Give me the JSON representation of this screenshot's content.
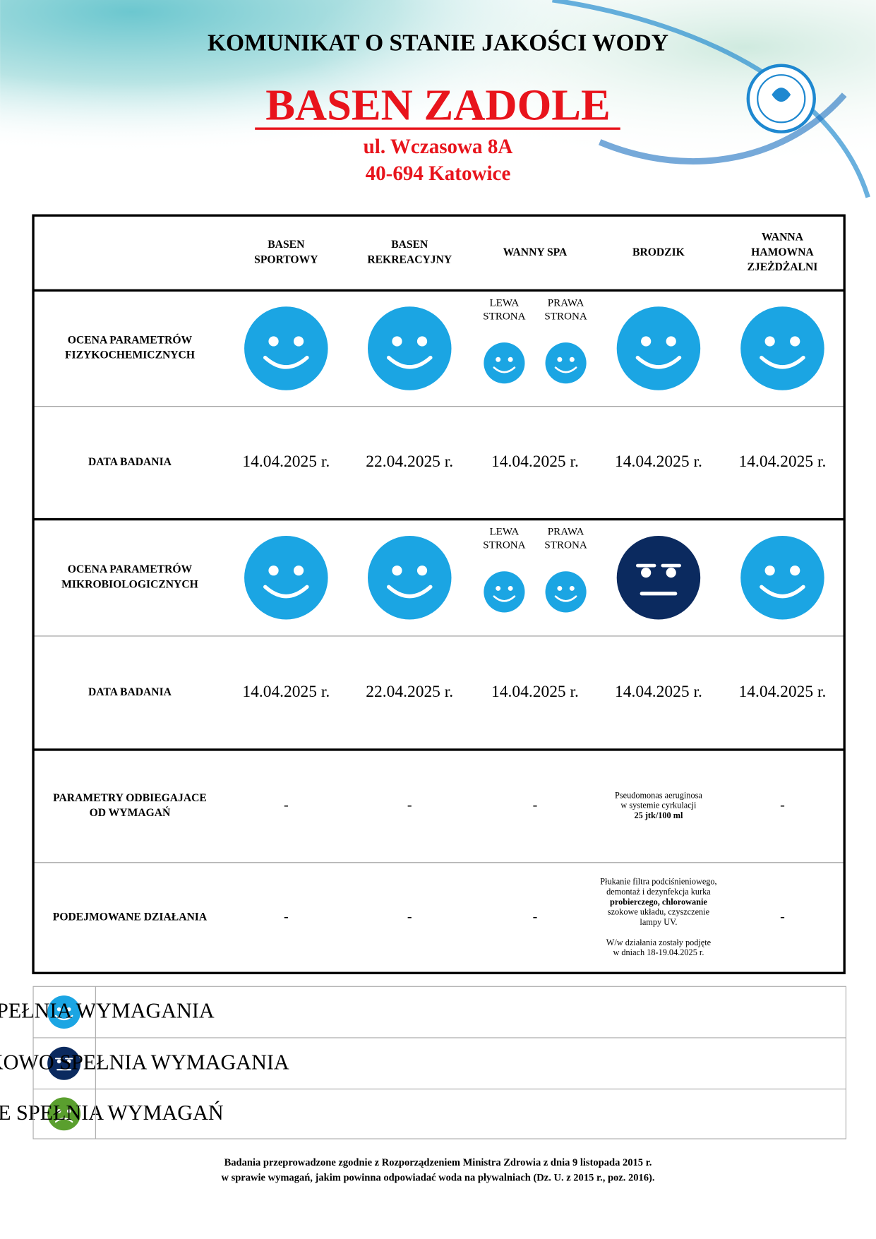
{
  "header": {
    "title": "KOMUNIKAT O STANIE JAKOŚCI WODY",
    "name": "BASEN ZADOLE",
    "street": "ul. Wczasowa 8A",
    "city": "40-694 Katowice"
  },
  "table": {
    "columns": [
      [
        "BASEN",
        "SPORTOWY"
      ],
      [
        "BASEN",
        "REKREACYJNY"
      ],
      [
        "WANNY SPA"
      ],
      [
        "BRODZIK"
      ],
      [
        "WANNA",
        "HAMOWNA",
        "ZJEŻDŻALNI"
      ]
    ],
    "sub_columns": [
      [
        "LEWA",
        "STRONA"
      ],
      [
        "PRAWA",
        "STRONA"
      ]
    ],
    "rows": [
      {
        "label": [
          "OCENA PARAMETRÓW",
          "FIZYKOCHEMICZNYCH"
        ]
      },
      {
        "label": [
          "DATA BADANIA"
        ],
        "cells": [
          "14.04.2025 r.",
          "22.04.2025 r.",
          "14.04.2025 r.",
          "14.04.2025 r.",
          "14.04.2025 r."
        ]
      },
      {
        "label": [
          "OCENA PARAMETRÓW",
          "MIKROBIOLOGICZNYCH"
        ]
      },
      {
        "label": [
          "DATA BADANIA"
        ],
        "cells": [
          "14.04.2025 r.",
          "22.04.2025 r.",
          "14.04.2025 r.",
          "14.04.2025 r.",
          "14.04.2025 r."
        ]
      },
      {
        "label": [
          "PARAMETRY ODBIEGAJACE",
          "OD WYMAGAŃ"
        ],
        "cells": [
          [
            [
              "-"
            ]
          ],
          [
            [
              "-"
            ]
          ],
          [
            [
              "-"
            ]
          ],
          [
            [
              "Pseudomonas aeruginosa",
              "w systemie cyrkulacji",
              "25 jtk/100 ml"
            ]
          ],
          [
            [
              "-"
            ]
          ]
        ]
      },
      {
        "label": [
          "PODEJMOWANE DZIAŁANIA"
        ],
        "cells": [
          [
            [
              "-"
            ]
          ],
          [
            [
              "-"
            ]
          ],
          [
            [
              "-"
            ]
          ],
          [
            [
              "Płukanie filtra podciśnieniowego,",
              "demontaż i dezynfekcja kurka",
              "probierczego, chlorowanie",
              "szokowe układu, czyszczenie",
              "lampy UV."
            ],
            [
              "W/w działania zostały podjęte",
              "w dniach 18-19.04.2025 r."
            ]
          ],
          [
            [
              "-"
            ]
          ]
        ]
      }
    ]
  },
  "legend": [
    "SPEŁNIA WYMAGANIA",
    "WARUNKOWO SPEŁNIA WYMAGANIA",
    "NIE SPEŁNIA WYMAGAŃ"
  ],
  "footer": [
    "Badania przeprowadzone zgodnie z Rozporządzeniem Ministra Zdrowia z dnia 9 listopada 2015 r.",
    "w sprawie wymagań, jakim powinna odpowiadać woda na pływalniach (Dz. U. z 2015 r., poz. 2016)."
  ]
}
